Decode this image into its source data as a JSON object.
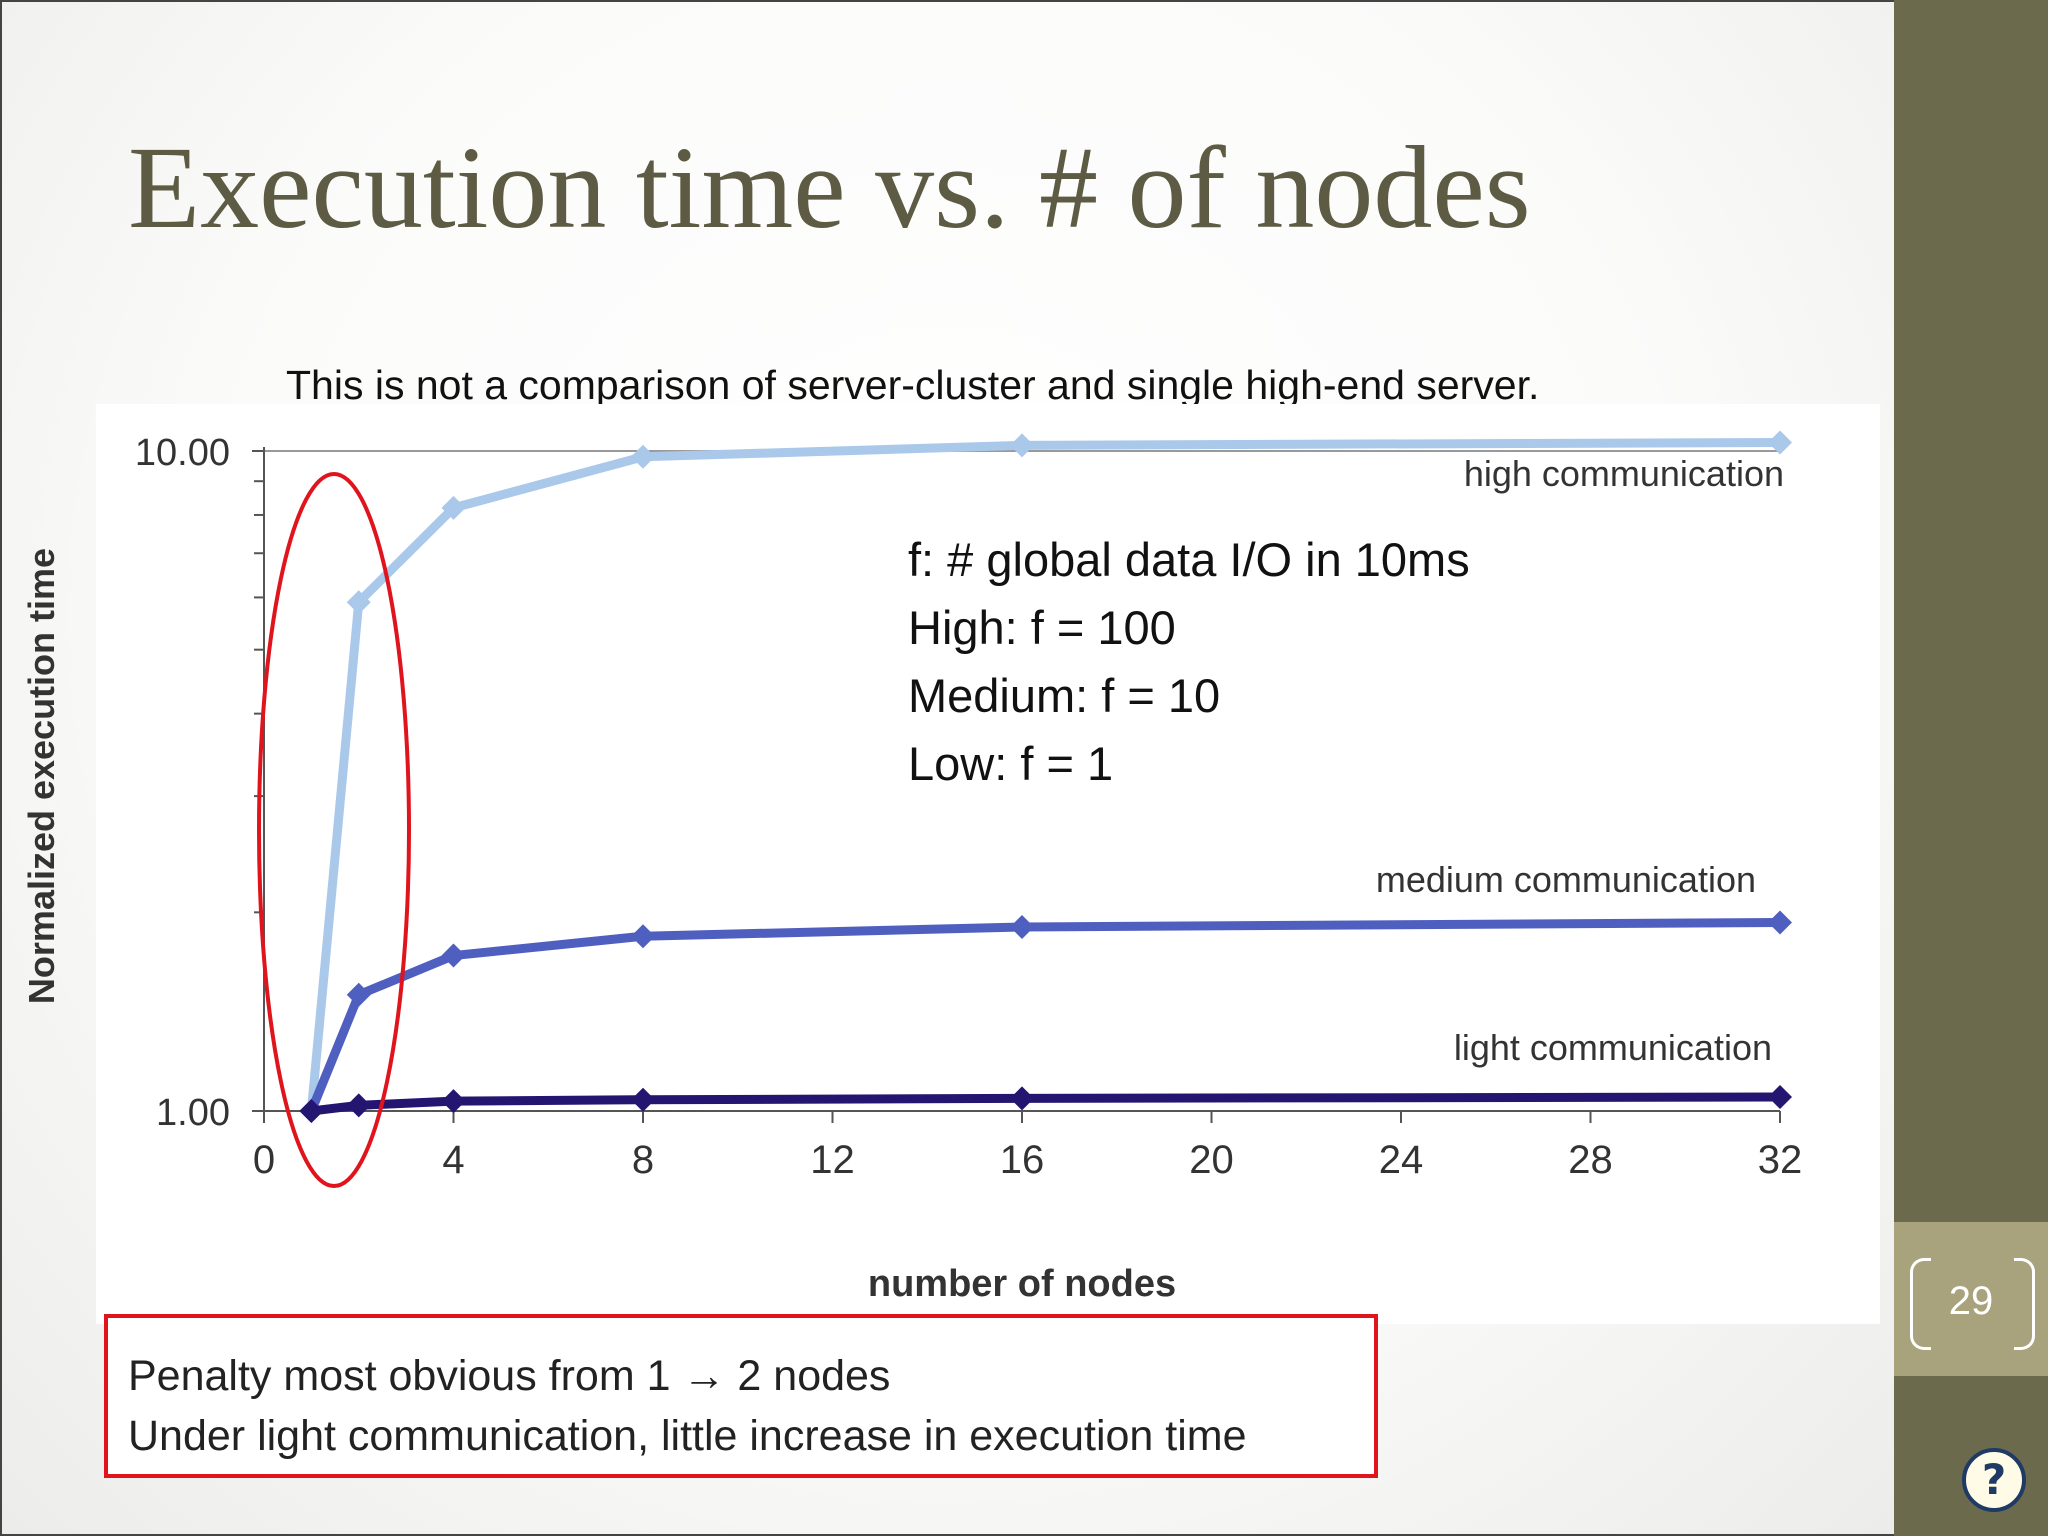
{
  "slide": {
    "title": "Execution time vs. # of nodes",
    "subtitle": "This is not a comparison of server-cluster and single high-end server.",
    "page_number": "29",
    "help_label": "?",
    "notes_box": [
      "Penalty most obvious from 1 → 2 nodes",
      "Under light communication, little increase in execution time"
    ],
    "annotation_lines": [
      "f: # global data I/O in 10ms",
      "High: f = 100",
      "Medium: f = 10",
      "Low: f = 1"
    ]
  },
  "colors": {
    "title": "#5d5b44",
    "high_series": "#a9c8ea",
    "medium_series": "#4f5fc0",
    "light_series": "#241670",
    "highlight_red": "#e0141c",
    "sidebar": "#6b6a4c"
  },
  "chart_data": {
    "type": "line",
    "xlabel": "number of nodes",
    "ylabel": "Normalized execution time",
    "x_ticks": [
      0,
      4,
      8,
      12,
      16,
      20,
      24,
      28,
      32
    ],
    "xlim": [
      0,
      32
    ],
    "y_scale": "log",
    "ylim": [
      1,
      10
    ],
    "y_tick_labels": [
      "1.00",
      "10.00"
    ],
    "series": [
      {
        "name": "high communication",
        "x": [
          1,
          2,
          4,
          8,
          16,
          32
        ],
        "y": [
          1.0,
          5.9,
          8.2,
          9.8,
          10.2,
          10.3
        ]
      },
      {
        "name": "medium communication",
        "x": [
          1,
          2,
          4,
          8,
          16,
          32
        ],
        "y": [
          1.0,
          1.5,
          1.72,
          1.84,
          1.9,
          1.93
        ]
      },
      {
        "name": "light communication",
        "x": [
          1,
          2,
          4,
          8,
          16,
          32
        ],
        "y": [
          1.0,
          1.02,
          1.035,
          1.04,
          1.045,
          1.05
        ]
      }
    ],
    "annotations": [
      "red ellipse highlighting x = 1 to 2"
    ]
  }
}
